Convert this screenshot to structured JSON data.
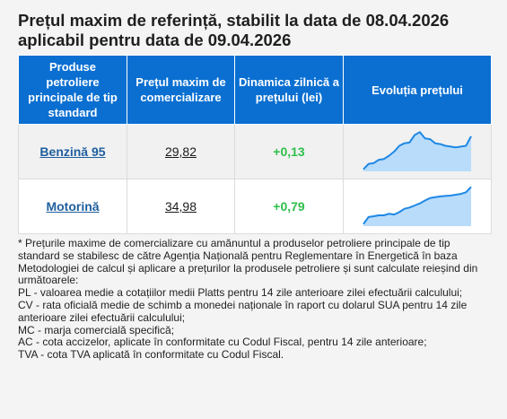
{
  "title": "Prețul maxim de referință, stabilit la data de 08.04.2026 aplicabil pentru data de 09.04.2026",
  "table": {
    "headers": [
      "Produse petroliere principale de tip standard",
      "Prețul maxim de comercializare",
      "Dinamica zilnică a prețului (lei)",
      "Evoluția prețului"
    ],
    "rows": [
      {
        "product": "Benzină 95",
        "price": "29,82",
        "change": "+0,13",
        "trend": [
          0.05,
          0.18,
          0.2,
          0.28,
          0.3,
          0.38,
          0.48,
          0.62,
          0.68,
          0.7,
          0.88,
          0.95,
          0.8,
          0.78,
          0.68,
          0.66,
          0.62,
          0.6,
          0.58,
          0.6,
          0.62,
          0.85
        ]
      },
      {
        "product": "Motorină",
        "price": "34,98",
        "change": "+0,79",
        "trend": [
          0.05,
          0.22,
          0.24,
          0.26,
          0.26,
          0.3,
          0.28,
          0.34,
          0.42,
          0.45,
          0.5,
          0.55,
          0.62,
          0.68,
          0.7,
          0.72,
          0.73,
          0.74,
          0.76,
          0.78,
          0.82,
          0.95
        ]
      }
    ]
  },
  "colors": {
    "header_bg": "#0a6fd1",
    "change_positive": "#2fbf4a",
    "spark_line": "#1e88e5",
    "spark_fill": "#b9dcfb"
  },
  "notes": [
    "* Prețurile maxime de comercializare cu amănuntul a produselor petroliere principale de tip standard se stabilesc de către Agenția Națională pentru Reglementare în Energetică în baza Metodologiei de calcul și aplicare a prețurilor la produsele petroliere și sunt calculate reieșind din următoarele:",
    "PL - valoarea medie a cotațiilor medii Platts pentru 14 zile anterioare zilei efectuării calculului;",
    "CV - rata oficială medie de schimb a monedei naționale în raport cu dolarul SUA pentru 14 zile anterioare zilei efectuării calculului;",
    "MC - marja comercială specifică;",
    "AC - cota accizelor, aplicate în conformitate cu Codul Fiscal, pentru 14 zile anterioare;",
    "TVA - cota TVA aplicată în conformitate cu Codul Fiscal."
  ]
}
